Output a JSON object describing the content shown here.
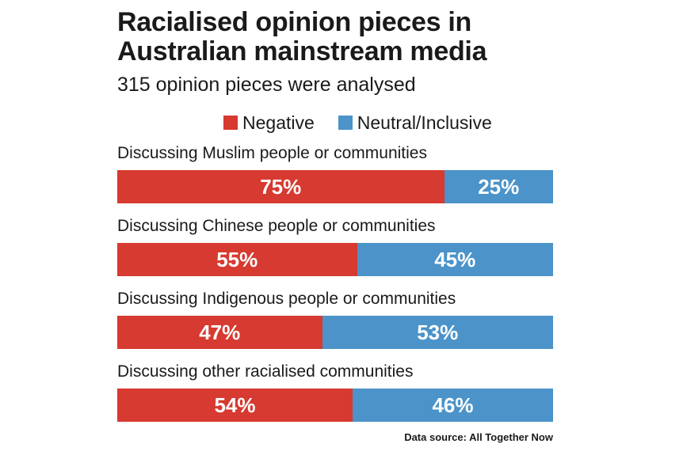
{
  "chart_data": {
    "type": "bar",
    "orientation": "horizontal",
    "stacked": true,
    "percent": true,
    "title": "Racialised opinion pieces in Australian mainstream media",
    "subtitle": "315 opinion pieces were analysed",
    "source": "Data source: All Together Now",
    "legend_position": "top",
    "categories": [
      "Discussing Muslim people or communities",
      "Discussing Chinese people or communities",
      "Discussing Indigenous people or communities",
      "Discussing other racialised communities"
    ],
    "series": [
      {
        "name": "Negative",
        "color": "#d63a30",
        "values": [
          75,
          55,
          47,
          54
        ]
      },
      {
        "name": "Neutral/Inclusive",
        "color": "#4b93c9",
        "values": [
          25,
          45,
          53,
          46
        ]
      }
    ]
  }
}
